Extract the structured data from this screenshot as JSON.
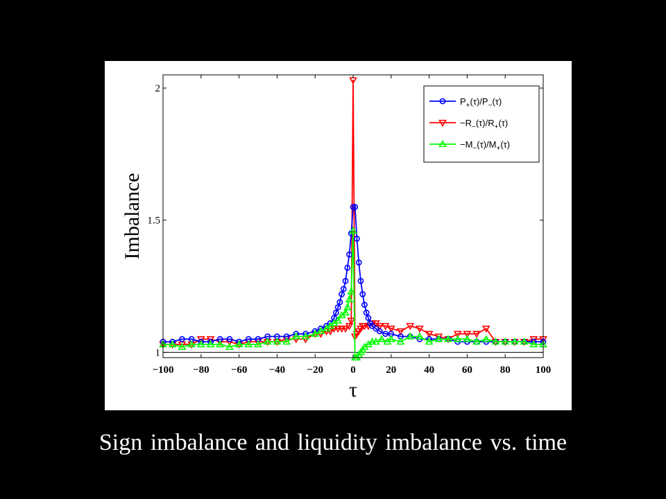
{
  "slide": {
    "caption": "Sign imbalance and liquidity imbalance vs. time"
  },
  "chart_data": {
    "type": "line",
    "title": "",
    "xlabel": "τ",
    "ylabel": "Imbalance",
    "xlim": [
      -100,
      100
    ],
    "ylim": [
      0.98,
      2.05
    ],
    "xticks": [
      -100,
      -80,
      -60,
      -40,
      -20,
      0,
      20,
      40,
      60,
      80,
      100
    ],
    "xtick_labels": [
      "−100",
      "−80",
      "−60",
      "−40",
      "−20",
      "0",
      "20",
      "40",
      "60",
      "80",
      "100"
    ],
    "yticks": [
      1,
      1.5,
      2
    ],
    "ytick_labels": [
      "1",
      "1.5",
      "2"
    ],
    "reference_line_y": 1,
    "grid": false,
    "legend_position": "top-right",
    "series": [
      {
        "name": "P₊(τ)/P₋(τ)",
        "legend": {
          "base": "P",
          "sub1": "+",
          "mid": "(τ)/P",
          "sub2": "−",
          "tail": "(τ)"
        },
        "color": "#0000ff",
        "marker": "circle",
        "x": [
          -100,
          -95,
          -90,
          -85,
          -80,
          -75,
          -70,
          -65,
          -60,
          -55,
          -50,
          -45,
          -40,
          -35,
          -30,
          -25,
          -20,
          -17,
          -14,
          -12,
          -10,
          -9,
          -8,
          -7,
          -6,
          -5,
          -4,
          -3,
          -2,
          -1,
          0,
          1,
          2,
          3,
          4,
          5,
          6,
          7,
          8,
          9,
          10,
          12,
          14,
          17,
          20,
          25,
          30,
          35,
          40,
          45,
          50,
          55,
          60,
          65,
          70,
          75,
          80,
          85,
          90,
          95,
          100
        ],
        "y": [
          1.04,
          1.04,
          1.05,
          1.05,
          1.04,
          1.04,
          1.05,
          1.05,
          1.04,
          1.05,
          1.05,
          1.06,
          1.06,
          1.06,
          1.07,
          1.07,
          1.08,
          1.09,
          1.1,
          1.11,
          1.13,
          1.15,
          1.17,
          1.19,
          1.22,
          1.24,
          1.27,
          1.32,
          1.37,
          1.45,
          1.55,
          1.55,
          1.43,
          1.34,
          1.27,
          1.22,
          1.18,
          1.15,
          1.13,
          1.11,
          1.1,
          1.09,
          1.08,
          1.07,
          1.07,
          1.06,
          1.06,
          1.05,
          1.05,
          1.05,
          1.05,
          1.04,
          1.04,
          1.04,
          1.04,
          1.04,
          1.04,
          1.04,
          1.04,
          1.04,
          1.04
        ]
      },
      {
        "name": "−R₋(τ)/R₊(τ)",
        "legend": {
          "base": "−R",
          "sub1": "−",
          "mid": "(τ)/R",
          "sub2": "+",
          "tail": "(τ)"
        },
        "color": "#ff0000",
        "marker": "triangle-down",
        "x": [
          -100,
          -95,
          -90,
          -85,
          -80,
          -75,
          -70,
          -65,
          -60,
          -55,
          -50,
          -45,
          -40,
          -35,
          -30,
          -25,
          -20,
          -17,
          -14,
          -12,
          -10,
          -8,
          -6,
          -4,
          -2,
          -1,
          0,
          1,
          2,
          3,
          4,
          5,
          6,
          8,
          10,
          12,
          14,
          17,
          20,
          25,
          30,
          35,
          40,
          45,
          50,
          55,
          60,
          65,
          70,
          75,
          80,
          85,
          90,
          95,
          100
        ],
        "y": [
          1.03,
          1.03,
          1.03,
          1.03,
          1.05,
          1.05,
          1.04,
          1.04,
          1.03,
          1.04,
          1.04,
          1.04,
          1.04,
          1.05,
          1.05,
          1.05,
          1.07,
          1.07,
          1.08,
          1.08,
          1.09,
          1.09,
          1.09,
          1.09,
          1.1,
          1.12,
          2.03,
          1.06,
          1.07,
          1.08,
          1.09,
          1.1,
          1.1,
          1.1,
          1.11,
          1.11,
          1.1,
          1.1,
          1.09,
          1.08,
          1.1,
          1.09,
          1.07,
          1.06,
          1.05,
          1.07,
          1.07,
          1.07,
          1.09,
          1.04,
          1.04,
          1.04,
          1.04,
          1.05,
          1.05
        ]
      },
      {
        "name": "−M₋(τ)/M₊(τ)",
        "legend": {
          "base": "−M",
          "sub1": "−",
          "mid": "(τ)/M",
          "sub2": "+",
          "tail": "(τ)"
        },
        "color": "#00ff00",
        "marker": "triangle-up",
        "x": [
          -100,
          -95,
          -90,
          -85,
          -80,
          -75,
          -70,
          -65,
          -60,
          -55,
          -50,
          -45,
          -40,
          -35,
          -30,
          -25,
          -20,
          -17,
          -14,
          -12,
          -10,
          -8,
          -6,
          -4,
          -3,
          -2,
          -1,
          0,
          1,
          2,
          3,
          4,
          5,
          6,
          8,
          10,
          12,
          15,
          18,
          20,
          25,
          30,
          35,
          40,
          45,
          50,
          55,
          60,
          65,
          70,
          75,
          80,
          85,
          90,
          95,
          100
        ],
        "y": [
          1.03,
          1.03,
          1.02,
          1.03,
          1.03,
          1.03,
          1.03,
          1.02,
          1.03,
          1.03,
          1.03,
          1.04,
          1.04,
          1.04,
          1.06,
          1.06,
          1.07,
          1.08,
          1.09,
          1.1,
          1.11,
          1.12,
          1.14,
          1.15,
          1.17,
          1.2,
          1.23,
          1.46,
          0.98,
          0.98,
          0.99,
          1.0,
          1.01,
          1.02,
          1.03,
          1.04,
          1.04,
          1.05,
          1.04,
          1.05,
          1.04,
          1.06,
          1.06,
          1.04,
          1.05,
          1.05,
          1.05,
          1.05,
          1.04,
          1.05,
          1.04,
          1.04,
          1.04,
          1.04,
          1.03,
          1.03
        ]
      }
    ]
  }
}
